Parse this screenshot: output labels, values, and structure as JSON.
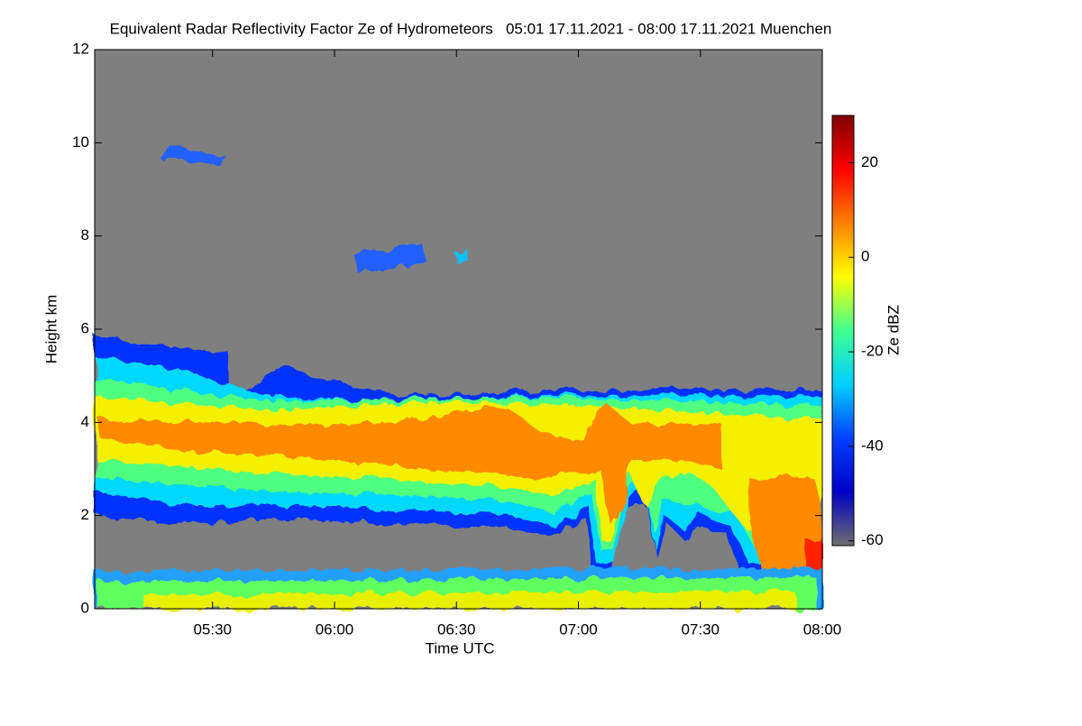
{
  "chart_data": {
    "type": "heatmap",
    "title": "Equivalent Radar Reflectivity Factor Ze of Hydrometeors   05:01 17.11.2021 - 08:00 17.11.2021 Muenchen",
    "x_label": "Time UTC",
    "y_label": "Height km",
    "xlim": [
      301,
      480
    ],
    "xticks": [
      {
        "value": 330,
        "label": "05:30"
      },
      {
        "value": 360,
        "label": "06:00"
      },
      {
        "value": 390,
        "label": "06:30"
      },
      {
        "value": 420,
        "label": "07:00"
      },
      {
        "value": 450,
        "label": "07:30"
      },
      {
        "value": 480,
        "label": "08:00"
      }
    ],
    "ylim": [
      0,
      12
    ],
    "yticks": [
      0,
      2,
      4,
      6,
      8,
      10,
      12
    ],
    "colorbar": {
      "label": "Ze dBZ",
      "clim": [
        -61,
        30
      ],
      "cticks": [
        -60,
        -40,
        -20,
        0,
        20
      ],
      "colormap": [
        "#6e6e6e",
        "#0000c8",
        "#0040ff",
        "#00d0ff",
        "#40ff90",
        "#ffff00",
        "#ff8000",
        "#ff0000",
        "#800000"
      ]
    }
  }
}
